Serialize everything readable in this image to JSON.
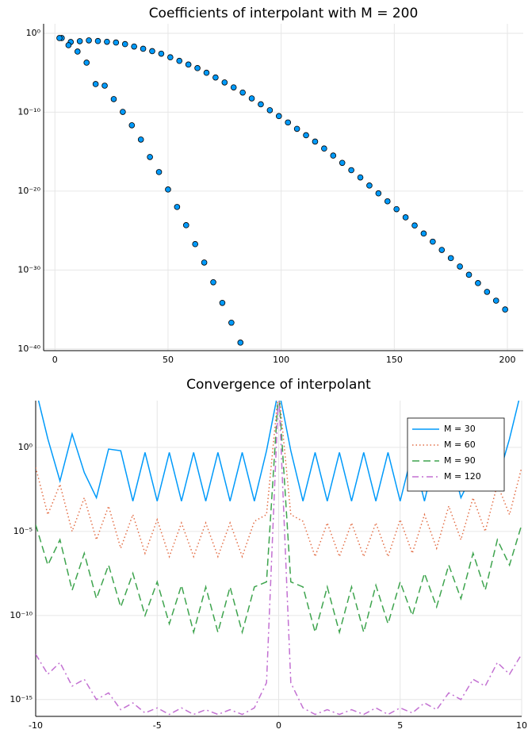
{
  "chart_data": [
    {
      "type": "scatter",
      "title": "Coefficients of interpolant with M = 200",
      "log_y": true,
      "grid": true,
      "xlim": [
        -5,
        207
      ],
      "xticks": [
        0,
        50,
        100,
        150,
        200
      ],
      "ylim": [
        6e-41,
        16
      ],
      "yticks": [
        {
          "value": 1,
          "label": "10⁰"
        },
        {
          "value": 1e-10,
          "label": "10⁻¹⁰"
        },
        {
          "value": 1e-20,
          "label": "10⁻²⁰"
        },
        {
          "value": 1e-30,
          "label": "10⁻³⁰"
        },
        {
          "value": 1e-40,
          "label": "10⁻⁴⁰"
        }
      ],
      "series": [
        {
          "color": "#009afa",
          "x": [
            3,
            7,
            11,
            15,
            19,
            23,
            27,
            31,
            35,
            39,
            43,
            47,
            51,
            55,
            59,
            63,
            67,
            71,
            75,
            79,
            83,
            87,
            91,
            95,
            99,
            103,
            107,
            111,
            115,
            119,
            123,
            127,
            131,
            135,
            139,
            143,
            147,
            151,
            155,
            159,
            163,
            167,
            171,
            175,
            179,
            183,
            187,
            191,
            195,
            199
          ],
          "values": [
            0.25,
            0.079,
            0.1,
            0.126,
            0.105,
            0.084,
            0.068,
            0.043,
            0.021,
            0.011,
            0.0055,
            0.0026,
            0.00091,
            0.00032,
            0.00011,
            3.9e-05,
            1e-05,
            2.5e-06,
            5.9e-07,
            1.4e-07,
            3.1e-08,
            5.6e-09,
            1e-09,
            1.8e-10,
            3.2e-11,
            5e-12,
            7.8e-13,
            1.2e-13,
            1.9e-14,
            2.5e-15,
            3.2e-16,
            3.8e-17,
            4.5e-18,
            5.4e-19,
            5.1e-20,
            5.2e-21,
            5.1e-22,
            5.1e-23,
            4.7e-24,
            4.4e-25,
            4.2e-26,
            3.9e-27,
            3.5e-28,
            3.2e-29,
            2.8e-30,
            2.5e-31,
            2.2e-32,
            1.7e-33,
            1.3e-34,
            1e-35
          ]
        },
        {
          "color": "#009afa",
          "x": [
            2,
            6,
            10,
            14,
            18,
            22,
            26,
            30,
            34,
            38,
            42,
            46,
            50,
            54,
            58,
            62,
            66,
            70,
            74,
            78,
            82
          ],
          "values": [
            0.25,
            0.031,
            0.0049,
            0.00019,
            3.7e-07,
            2.3e-07,
            4.6e-09,
            1.1e-10,
            2.2e-12,
            3.4e-14,
            2.1e-16,
            2.6e-18,
            1.6e-20,
            9.8e-23,
            4.8e-25,
            1.9e-27,
            8.9e-30,
            2.8e-32,
            6.8e-35,
            2.1e-37,
            6.3e-40
          ]
        }
      ]
    },
    {
      "type": "line",
      "title": "Convergence of interpolant",
      "log_y": true,
      "grid": true,
      "legend": "top right",
      "xlim": [
        -10,
        10
      ],
      "xticks": [
        -10,
        -5,
        0,
        5,
        10
      ],
      "ylim": [
        1e-16,
        600
      ],
      "yticks": [
        {
          "value": 1,
          "label": "10⁰"
        },
        {
          "value": 1e-05,
          "label": "10⁻⁵"
        },
        {
          "value": 1e-10,
          "label": "10⁻¹⁰"
        },
        {
          "value": 1e-15,
          "label": "10⁻¹⁵"
        }
      ],
      "x": [
        -10,
        -9.5,
        -9,
        -8.5,
        -8,
        -7.5,
        -7,
        -6.5,
        -6,
        -5.5,
        -5,
        -4.5,
        -4,
        -3.5,
        -3,
        -2.5,
        -2,
        -1.5,
        -1,
        -0.5,
        0,
        0.5,
        1,
        1.5,
        2,
        2.5,
        3,
        3.5,
        4,
        4.5,
        5,
        5.5,
        6,
        6.5,
        7,
        7.5,
        8,
        8.5,
        9,
        9.5,
        10
      ],
      "series": [
        {
          "name": "M = 30",
          "color": "#009afa",
          "dash": "solid",
          "values": [
            3000,
            3.2,
            0.01,
            6.3,
            0.032,
            0.001,
            0.79,
            0.63,
            0.00063,
            0.5,
            0.00063,
            0.5,
            0.00063,
            0.5,
            0.00063,
            0.5,
            0.00063,
            0.5,
            0.00063,
            0.63,
            3000,
            0.63,
            0.00063,
            0.5,
            0.00063,
            0.5,
            0.00063,
            0.5,
            0.00063,
            0.5,
            0.00063,
            0.5,
            0.00063,
            0.63,
            0.79,
            0.001,
            0.032,
            6.3,
            0.01,
            3.2,
            3000
          ]
        },
        {
          "name": "M = 60",
          "color": "#e36f47",
          "dash": "dot",
          "values": [
            0.063,
            0.0001,
            0.0063,
            1e-05,
            0.001,
            3.2e-06,
            0.00032,
            1e-06,
            0.0001,
            5e-07,
            5e-05,
            3.2e-07,
            3.2e-05,
            3.2e-07,
            3.2e-05,
            3.2e-07,
            3.2e-05,
            3.2e-07,
            4e-05,
            0.0001,
            3000,
            0.0001,
            4e-05,
            3.2e-07,
            3.2e-05,
            3.2e-07,
            3.2e-05,
            3.2e-07,
            3.2e-05,
            3.2e-07,
            5e-05,
            5e-07,
            0.0001,
            1e-06,
            0.00032,
            3.2e-06,
            0.001,
            1e-05,
            0.0063,
            0.0001,
            0.063
          ]
        },
        {
          "name": "M = 90",
          "color": "#3ea44e",
          "dash": "dash",
          "values": [
            2.5e-05,
            1e-07,
            3.2e-06,
            3.2e-09,
            5e-07,
            1e-09,
            1e-07,
            3.2e-10,
            3.2e-08,
            1e-10,
            1e-08,
            3.2e-11,
            6.3e-09,
            1e-11,
            5e-09,
            1e-11,
            5e-09,
            1e-11,
            5e-09,
            1e-08,
            3000,
            1e-08,
            5e-09,
            1e-11,
            5e-09,
            1e-11,
            5e-09,
            1e-11,
            6.3e-09,
            3.2e-11,
            1e-08,
            1e-10,
            3.2e-08,
            3.2e-10,
            1e-07,
            1e-09,
            5e-07,
            3.2e-09,
            3.2e-06,
            1e-07,
            2.5e-05
          ]
        },
        {
          "name": "M = 120",
          "color": "#c371d2",
          "dash": "dashdot",
          "values": [
            5e-13,
            3.2e-14,
            1.6e-13,
            6.3e-15,
            1.6e-14,
            1e-15,
            2.5e-15,
            2.5e-16,
            6.3e-16,
            1.6e-16,
            3.2e-16,
            1.3e-16,
            3.2e-16,
            1.3e-16,
            2.5e-16,
            1.3e-16,
            2.5e-16,
            1.3e-16,
            3.2e-16,
            1e-14,
            3000,
            1e-14,
            3.2e-16,
            1.3e-16,
            2.5e-16,
            1.3e-16,
            2.5e-16,
            1.3e-16,
            3.2e-16,
            1.3e-16,
            3.2e-16,
            1.6e-16,
            6.3e-16,
            2.5e-16,
            2.5e-15,
            1e-15,
            1.6e-14,
            6.3e-15,
            1.6e-13,
            3.2e-14,
            5e-13
          ]
        }
      ]
    }
  ]
}
